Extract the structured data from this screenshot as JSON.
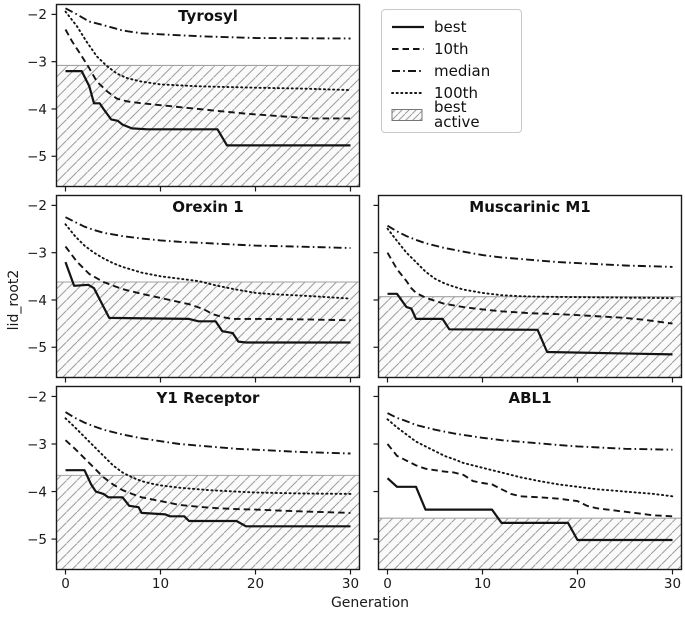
{
  "figure": {
    "background": "#ffffff",
    "line_color": "#141414",
    "spine_color": "#1a1a1a",
    "hatch_fill": "#fafafa",
    "hatch_line_color": "#9e9e9e",
    "threshold_line_color": "#a3a3a3"
  },
  "axis": {
    "xlabel": "Generation",
    "ylabel": "lid_root2",
    "xlim": [
      -1,
      31
    ],
    "ylim": [
      -5.65,
      -1.78
    ],
    "xticks": [
      0,
      10,
      20,
      30
    ],
    "yticks": [
      -2,
      -3,
      -4,
      -5
    ],
    "grid": false
  },
  "legend": {
    "position": "top-right",
    "items": [
      {
        "label": "best",
        "style": "solid"
      },
      {
        "label": "10th",
        "style": "dashed"
      },
      {
        "label": "median",
        "style": "dashdot"
      },
      {
        "label": "100th",
        "style": "dotted"
      },
      {
        "label": "best active",
        "style": "hatch"
      }
    ]
  },
  "chart_data": [
    {
      "type": "line",
      "title": "Tyrosyl",
      "best_active_threshold": -3.08,
      "ytick_labels": true,
      "xtick_labels": false,
      "series": [
        {
          "name": "best",
          "style": "solid",
          "x": [
            0,
            1.7,
            2.5,
            3,
            3.6,
            4,
            4.8,
            5.5,
            6,
            7,
            8.6,
            16,
            17,
            30
          ],
          "y": [
            -3.2,
            -3.2,
            -3.52,
            -3.88,
            -3.88,
            -4.0,
            -4.22,
            -4.25,
            -4.33,
            -4.41,
            -4.43,
            -4.43,
            -4.77,
            -4.77
          ]
        },
        {
          "name": "10th",
          "style": "dashed",
          "x": [
            0,
            0.7,
            1.6,
            2.5,
            3.3,
            4.4,
            5.4,
            6.5,
            8,
            9,
            10,
            14,
            19,
            23,
            26,
            30
          ],
          "y": [
            -2.32,
            -2.57,
            -2.85,
            -3.14,
            -3.42,
            -3.63,
            -3.78,
            -3.84,
            -3.88,
            -3.9,
            -3.92,
            -4.0,
            -4.1,
            -4.16,
            -4.2,
            -4.2
          ]
        },
        {
          "name": "median",
          "style": "dashdot",
          "x": [
            0,
            1.2,
            2.5,
            4.4,
            6,
            8,
            10,
            14,
            20,
            30
          ],
          "y": [
            -1.87,
            -2.0,
            -2.15,
            -2.25,
            -2.34,
            -2.4,
            -2.42,
            -2.46,
            -2.5,
            -2.51
          ]
        },
        {
          "name": "100th",
          "style": "dotted",
          "x": [
            0,
            1.2,
            2.2,
            3.3,
            4.4,
            5.4,
            6.5,
            8,
            10,
            14,
            20,
            25,
            30
          ],
          "y": [
            -1.94,
            -2.25,
            -2.57,
            -2.89,
            -3.1,
            -3.25,
            -3.35,
            -3.42,
            -3.48,
            -3.52,
            -3.55,
            -3.57,
            -3.6
          ]
        }
      ]
    },
    {
      "type": "line",
      "title": "Orexin 1",
      "best_active_threshold": -3.62,
      "ytick_labels": true,
      "xtick_labels": false,
      "series": [
        {
          "name": "best",
          "style": "solid",
          "x": [
            0,
            0.9,
            2.4,
            3,
            4.6,
            13,
            14,
            15.8,
            16.5,
            17.6,
            18.2,
            19,
            30
          ],
          "y": [
            -3.2,
            -3.7,
            -3.68,
            -3.75,
            -4.38,
            -4.4,
            -4.45,
            -4.45,
            -4.66,
            -4.7,
            -4.88,
            -4.9,
            -4.9
          ]
        },
        {
          "name": "10th",
          "style": "dashed",
          "x": [
            0,
            1.2,
            2.5,
            4,
            6,
            8,
            10.5,
            13,
            14.5,
            15.5,
            16.5,
            17.5,
            20,
            25,
            30
          ],
          "y": [
            -2.87,
            -3.19,
            -3.45,
            -3.62,
            -3.77,
            -3.87,
            -3.98,
            -4.09,
            -4.19,
            -4.3,
            -4.36,
            -4.4,
            -4.4,
            -4.41,
            -4.43
          ]
        },
        {
          "name": "median",
          "style": "dashdot",
          "x": [
            0,
            1,
            2,
            3,
            4,
            6,
            8,
            10,
            12,
            15,
            18,
            20,
            24,
            30
          ],
          "y": [
            -2.25,
            -2.35,
            -2.45,
            -2.52,
            -2.58,
            -2.65,
            -2.7,
            -2.74,
            -2.77,
            -2.8,
            -2.83,
            -2.85,
            -2.87,
            -2.9
          ]
        },
        {
          "name": "100th",
          "style": "dotted",
          "x": [
            0,
            1,
            2,
            3,
            4,
            5,
            6,
            8,
            10,
            12,
            14,
            16,
            18,
            20,
            22,
            24,
            26,
            30
          ],
          "y": [
            -2.4,
            -2.65,
            -2.85,
            -3.0,
            -3.12,
            -3.22,
            -3.3,
            -3.42,
            -3.5,
            -3.55,
            -3.6,
            -3.7,
            -3.78,
            -3.85,
            -3.88,
            -3.9,
            -3.92,
            -3.97
          ]
        }
      ]
    },
    {
      "type": "line",
      "title": "Muscarinic M1",
      "best_active_threshold": -3.93,
      "ytick_labels": false,
      "xtick_labels": false,
      "series": [
        {
          "name": "best",
          "style": "solid",
          "x": [
            0,
            1,
            2,
            2.5,
            3,
            5.8,
            6.5,
            15.8,
            16.8,
            30
          ],
          "y": [
            -3.87,
            -3.87,
            -4.15,
            -4.18,
            -4.4,
            -4.4,
            -4.62,
            -4.63,
            -5.1,
            -5.15
          ]
        },
        {
          "name": "10th",
          "style": "dashed",
          "x": [
            0,
            1,
            2,
            2.5,
            3,
            4,
            5,
            6,
            8,
            10,
            12,
            15,
            18,
            20,
            25,
            27,
            30
          ],
          "y": [
            -3.0,
            -3.35,
            -3.6,
            -3.75,
            -3.85,
            -3.95,
            -4.02,
            -4.08,
            -4.15,
            -4.2,
            -4.24,
            -4.28,
            -4.3,
            -4.32,
            -4.38,
            -4.42,
            -4.5
          ]
        },
        {
          "name": "median",
          "style": "dashdot",
          "x": [
            0,
            1,
            2,
            3,
            4,
            6,
            8,
            10,
            12,
            15,
            18,
            20,
            25,
            30
          ],
          "y": [
            -2.43,
            -2.55,
            -2.65,
            -2.73,
            -2.8,
            -2.9,
            -2.98,
            -3.05,
            -3.1,
            -3.15,
            -3.2,
            -3.22,
            -3.27,
            -3.3
          ]
        },
        {
          "name": "100th",
          "style": "dotted",
          "x": [
            0,
            1,
            2,
            3,
            4,
            5,
            6,
            7,
            8,
            10,
            12,
            14,
            16,
            20,
            25,
            30
          ],
          "y": [
            -2.49,
            -2.75,
            -3.0,
            -3.2,
            -3.4,
            -3.55,
            -3.65,
            -3.72,
            -3.78,
            -3.85,
            -3.9,
            -3.92,
            -3.93,
            -3.94,
            -3.95,
            -3.96
          ]
        }
      ]
    },
    {
      "type": "line",
      "title": "Y1 Receptor",
      "best_active_threshold": -3.66,
      "ytick_labels": true,
      "xtick_labels": true,
      "series": [
        {
          "name": "best",
          "style": "solid",
          "x": [
            0,
            2,
            2.7,
            3.2,
            4,
            4.5,
            6,
            6.7,
            7.7,
            8,
            10.5,
            11,
            12.5,
            13,
            18,
            19,
            30
          ],
          "y": [
            -3.55,
            -3.55,
            -3.85,
            -4.0,
            -4.05,
            -4.12,
            -4.12,
            -4.3,
            -4.33,
            -4.45,
            -4.48,
            -4.52,
            -4.52,
            -4.62,
            -4.62,
            -4.73,
            -4.73
          ]
        },
        {
          "name": "10th",
          "style": "dashed",
          "x": [
            0,
            1,
            2,
            3,
            4,
            5,
            6,
            7,
            8,
            10,
            12,
            14,
            16,
            18,
            20,
            25,
            30
          ],
          "y": [
            -2.92,
            -3.1,
            -3.3,
            -3.5,
            -3.7,
            -3.85,
            -3.97,
            -4.05,
            -4.12,
            -4.2,
            -4.28,
            -4.32,
            -4.35,
            -4.37,
            -4.38,
            -4.42,
            -4.45
          ]
        },
        {
          "name": "median",
          "style": "dashdot",
          "x": [
            0,
            1,
            2,
            3,
            4,
            6,
            8,
            10,
            12,
            15,
            18,
            20,
            25,
            30
          ],
          "y": [
            -2.33,
            -2.45,
            -2.55,
            -2.63,
            -2.7,
            -2.8,
            -2.88,
            -2.94,
            -3.0,
            -3.05,
            -3.1,
            -3.12,
            -3.17,
            -3.2
          ]
        },
        {
          "name": "100th",
          "style": "dotted",
          "x": [
            0,
            1,
            2,
            3,
            4,
            5,
            6,
            7,
            8,
            9,
            10,
            12,
            15,
            18,
            20,
            25,
            30
          ],
          "y": [
            -2.46,
            -2.65,
            -2.85,
            -3.05,
            -3.25,
            -3.45,
            -3.6,
            -3.7,
            -3.78,
            -3.83,
            -3.87,
            -3.92,
            -3.97,
            -4.0,
            -4.02,
            -4.04,
            -4.05
          ]
        }
      ]
    },
    {
      "type": "line",
      "title": "ABL1",
      "best_active_threshold": -4.56,
      "ytick_labels": false,
      "xtick_labels": true,
      "series": [
        {
          "name": "best",
          "style": "solid",
          "x": [
            0,
            1,
            3,
            4,
            11,
            12,
            19,
            20,
            30
          ],
          "y": [
            -3.72,
            -3.9,
            -3.9,
            -4.38,
            -4.38,
            -4.66,
            -4.66,
            -5.02,
            -5.02
          ]
        },
        {
          "name": "10th",
          "style": "dashed",
          "x": [
            0,
            1,
            2,
            3,
            4,
            5,
            6,
            7,
            8,
            9,
            10,
            11,
            12,
            13,
            14,
            16,
            18,
            20,
            21,
            22,
            24,
            26,
            28,
            30
          ],
          "y": [
            -3.0,
            -3.25,
            -3.35,
            -3.45,
            -3.52,
            -3.55,
            -3.58,
            -3.6,
            -3.65,
            -3.78,
            -3.82,
            -3.85,
            -3.95,
            -4.05,
            -4.1,
            -4.12,
            -4.15,
            -4.2,
            -4.3,
            -4.35,
            -4.4,
            -4.45,
            -4.5,
            -4.52
          ]
        },
        {
          "name": "median",
          "style": "dashdot",
          "x": [
            0,
            1,
            2,
            3,
            5,
            7,
            10,
            12,
            15,
            18,
            20,
            25,
            30
          ],
          "y": [
            -2.35,
            -2.45,
            -2.52,
            -2.6,
            -2.7,
            -2.78,
            -2.87,
            -2.92,
            -2.97,
            -3.02,
            -3.05,
            -3.1,
            -3.12
          ]
        },
        {
          "name": "100th",
          "style": "dotted",
          "x": [
            0,
            1,
            2,
            3,
            4,
            5,
            6,
            7,
            8,
            10,
            12,
            14,
            16,
            18,
            20,
            22,
            25,
            28,
            30
          ],
          "y": [
            -2.48,
            -2.65,
            -2.8,
            -2.95,
            -3.05,
            -3.15,
            -3.25,
            -3.32,
            -3.4,
            -3.5,
            -3.6,
            -3.7,
            -3.78,
            -3.85,
            -3.9,
            -3.95,
            -4.0,
            -4.05,
            -4.1
          ]
        }
      ]
    }
  ]
}
